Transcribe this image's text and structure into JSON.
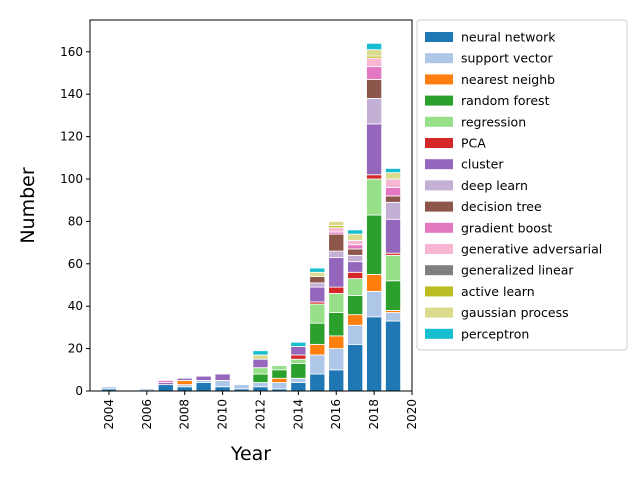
{
  "chart_data": {
    "type": "bar",
    "stacked": true,
    "title": "",
    "xlabel": "Year",
    "ylabel": "Number",
    "x": [
      2004,
      2005,
      2006,
      2007,
      2008,
      2009,
      2010,
      2011,
      2012,
      2013,
      2014,
      2015,
      2016,
      2017,
      2018,
      2019
    ],
    "xlim": [
      2003,
      2020
    ],
    "ylim": [
      0,
      175
    ],
    "xticks": [
      2004,
      2006,
      2008,
      2010,
      2012,
      2014,
      2016,
      2018,
      2020
    ],
    "yticks": [
      0,
      20,
      40,
      60,
      80,
      100,
      120,
      140,
      160
    ],
    "grid": false,
    "legend_position": "right, outside plot",
    "series": [
      {
        "name": "neural network",
        "color": "#1f77b4",
        "values": [
          1,
          0,
          0,
          3,
          2,
          4,
          2,
          1,
          2,
          1,
          4,
          8,
          10,
          22,
          35,
          33
        ]
      },
      {
        "name": "support vector",
        "color": "#aec7e8",
        "values": [
          1,
          0,
          1,
          0,
          1,
          1,
          3,
          2,
          2,
          3,
          2,
          9,
          10,
          9,
          12,
          4
        ]
      },
      {
        "name": "nearest neighb",
        "color": "#ff7f0e",
        "values": [
          0,
          0,
          0,
          0,
          2,
          0,
          0,
          0,
          0,
          2,
          0,
          5,
          6,
          5,
          8,
          1
        ]
      },
      {
        "name": "random forest",
        "color": "#2ca02c",
        "values": [
          0,
          0,
          0,
          0,
          0,
          0,
          0,
          0,
          4,
          4,
          7,
          10,
          11,
          9,
          28,
          14
        ]
      },
      {
        "name": "regression",
        "color": "#98df8a",
        "values": [
          0,
          0,
          0,
          0,
          0,
          0,
          0,
          0,
          3,
          2,
          2,
          9,
          9,
          8,
          17,
          12
        ]
      },
      {
        "name": "PCA",
        "color": "#d62728",
        "values": [
          0,
          0,
          0,
          0,
          0,
          0,
          0,
          0,
          0,
          0,
          2,
          1,
          3,
          3,
          2,
          1
        ]
      },
      {
        "name": "cluster",
        "color": "#9467bd",
        "values": [
          0,
          0,
          0,
          1,
          1,
          2,
          3,
          0,
          4,
          0,
          4,
          7,
          14,
          5,
          24,
          16
        ]
      },
      {
        "name": "deep learn",
        "color": "#c5b0d5",
        "values": [
          0,
          0,
          0,
          0,
          0,
          0,
          0,
          0,
          0,
          0,
          0,
          2,
          3,
          3,
          12,
          8
        ]
      },
      {
        "name": "decision tree",
        "color": "#8c564b",
        "values": [
          0,
          0,
          0,
          0,
          0,
          0,
          0,
          0,
          0,
          0,
          0,
          3,
          8,
          3,
          9,
          3
        ]
      },
      {
        "name": "gradient boost",
        "color": "#e377c2",
        "values": [
          0,
          0,
          0,
          1,
          0,
          0,
          0,
          0,
          0,
          0,
          0,
          0,
          1,
          2,
          6,
          4
        ]
      },
      {
        "name": "generative adversarial",
        "color": "#f7b6d2",
        "values": [
          0,
          0,
          0,
          0,
          0,
          0,
          0,
          0,
          0,
          0,
          0,
          0,
          2,
          2,
          4,
          4
        ]
      },
      {
        "name": "generalized linear",
        "color": "#7f7f7f",
        "values": [
          0,
          0,
          0,
          0,
          0,
          0,
          0,
          0,
          0,
          0,
          0,
          0,
          0,
          0,
          0,
          0
        ]
      },
      {
        "name": "active learn",
        "color": "#bcbd22",
        "values": [
          0,
          0,
          0,
          0,
          0,
          0,
          0,
          0,
          0,
          0,
          0,
          0,
          1,
          0,
          1,
          0
        ]
      },
      {
        "name": "gaussian process",
        "color": "#dbdb8d",
        "values": [
          0,
          0,
          0,
          0,
          0,
          0,
          0,
          0,
          2,
          0,
          0,
          2,
          2,
          3,
          3,
          3
        ]
      },
      {
        "name": "perceptron",
        "color": "#17becf",
        "values": [
          0,
          0,
          0,
          0,
          0,
          0,
          0,
          0,
          2,
          0,
          2,
          2,
          0,
          2,
          3,
          2
        ]
      }
    ]
  }
}
